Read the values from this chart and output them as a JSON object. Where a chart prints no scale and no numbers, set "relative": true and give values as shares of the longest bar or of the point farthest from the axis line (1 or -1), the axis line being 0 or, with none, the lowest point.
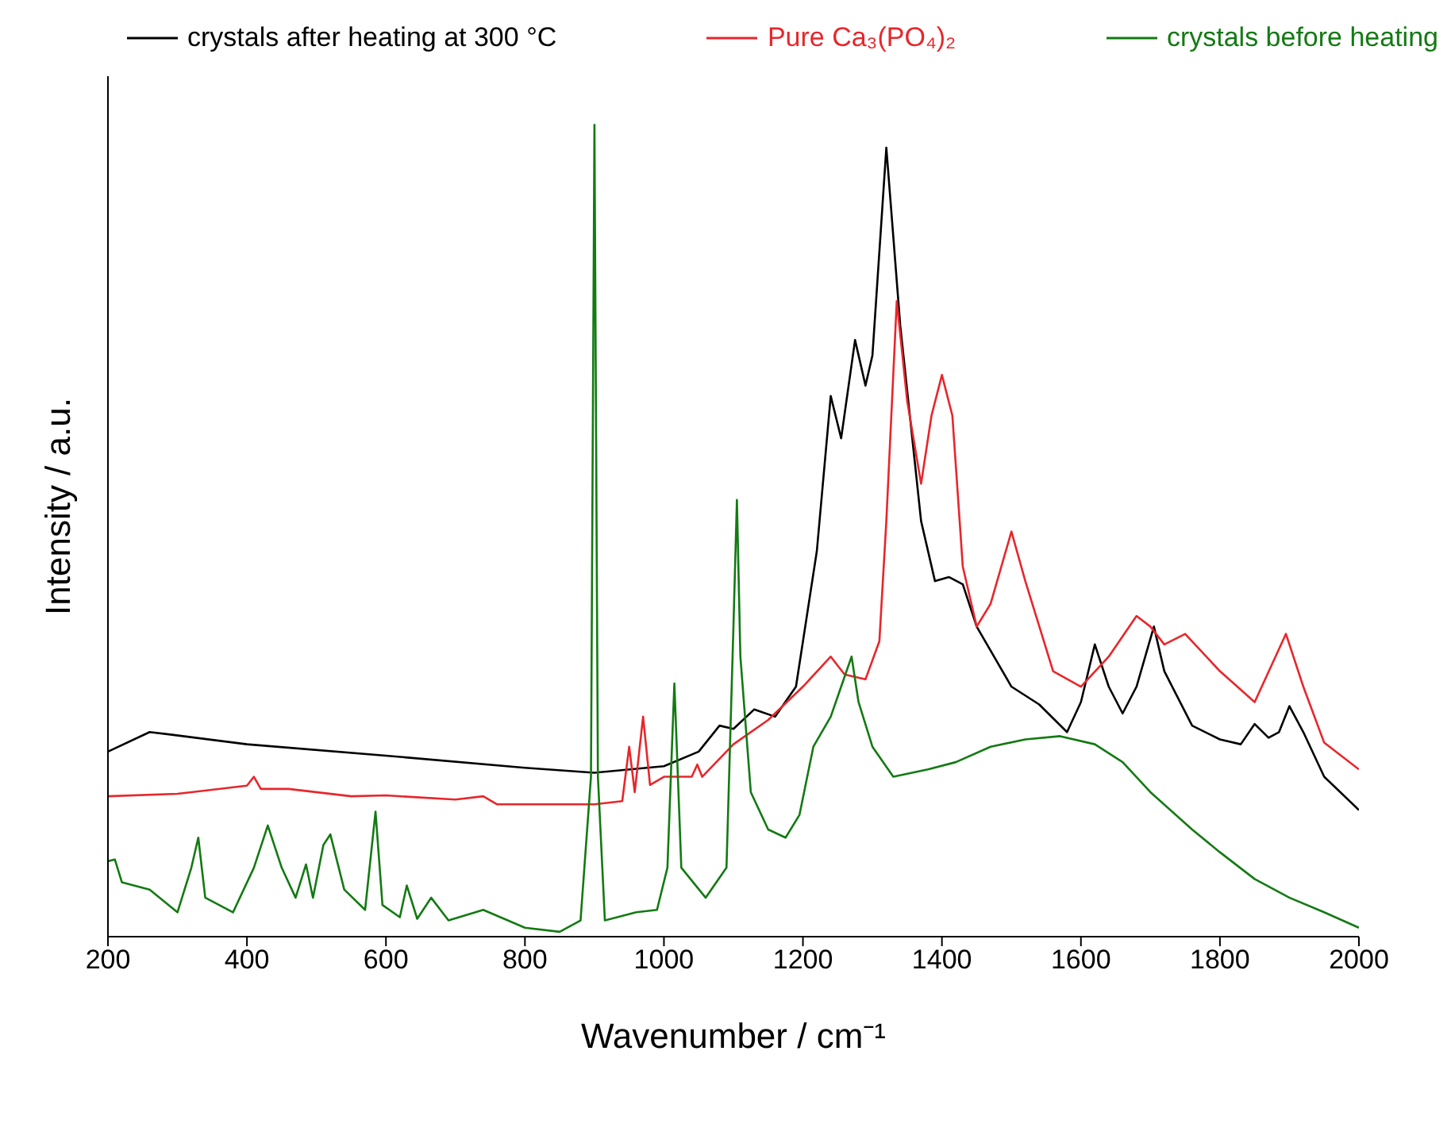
{
  "chart_data": {
    "type": "line",
    "relative": true,
    "xlabel": "Wavenumber / cm⁻¹",
    "ylabel": "Intensity / a.u.",
    "xlim": [
      200,
      2000
    ],
    "xticks": [
      200,
      400,
      600,
      800,
      1000,
      1200,
      1400,
      1600,
      1800,
      2000
    ],
    "legend": "top",
    "series": [
      {
        "name": "crystals after heating at 300 °C",
        "color": "#000000",
        "x": [
          200,
          260,
          290,
          400,
          600,
          800,
          900,
          1000,
          1050,
          1080,
          1100,
          1130,
          1160,
          1190,
          1220,
          1240,
          1255,
          1275,
          1290,
          1300,
          1320,
          1340,
          1370,
          1390,
          1410,
          1430,
          1450,
          1500,
          1540,
          1580,
          1600,
          1620,
          1640,
          1660,
          1680,
          1705,
          1720,
          1760,
          1800,
          1830,
          1850,
          1870,
          1885,
          1900,
          1920,
          1950,
          2000
        ],
        "values": [
          0.228,
          0.252,
          0.249,
          0.237,
          0.223,
          0.208,
          0.202,
          0.21,
          0.228,
          0.26,
          0.256,
          0.28,
          0.271,
          0.308,
          0.475,
          0.666,
          0.614,
          0.735,
          0.679,
          0.716,
          0.972,
          0.753,
          0.512,
          0.438,
          0.443,
          0.434,
          0.382,
          0.308,
          0.286,
          0.252,
          0.289,
          0.36,
          0.308,
          0.275,
          0.308,
          0.382,
          0.327,
          0.26,
          0.243,
          0.237,
          0.262,
          0.245,
          0.252,
          0.284,
          0.252,
          0.197,
          0.156
        ]
      },
      {
        "name": "Pure Ca₃(PO₄)₂",
        "color": "#e8262b",
        "x": [
          200,
          300,
          400,
          410,
          420,
          460,
          550,
          600,
          700,
          740,
          760,
          900,
          940,
          950,
          958,
          970,
          980,
          1000,
          1040,
          1048,
          1055,
          1100,
          1150,
          1200,
          1240,
          1260,
          1290,
          1310,
          1320,
          1335,
          1350,
          1370,
          1385,
          1400,
          1415,
          1430,
          1450,
          1470,
          1500,
          1520,
          1560,
          1600,
          1640,
          1680,
          1700,
          1720,
          1750,
          1800,
          1850,
          1895,
          1920,
          1950,
          2000
        ],
        "values": [
          0.173,
          0.176,
          0.186,
          0.197,
          0.182,
          0.182,
          0.173,
          0.174,
          0.169,
          0.173,
          0.163,
          0.163,
          0.167,
          0.234,
          0.178,
          0.271,
          0.187,
          0.197,
          0.197,
          0.212,
          0.197,
          0.237,
          0.267,
          0.308,
          0.345,
          0.323,
          0.317,
          0.364,
          0.512,
          0.783,
          0.66,
          0.558,
          0.642,
          0.692,
          0.642,
          0.456,
          0.382,
          0.41,
          0.499,
          0.438,
          0.327,
          0.308,
          0.345,
          0.395,
          0.382,
          0.36,
          0.373,
          0.327,
          0.289,
          0.373,
          0.308,
          0.239,
          0.206
        ]
      },
      {
        "name": "crystals before heating",
        "color": "#137a13",
        "x": [
          200,
          210,
          220,
          260,
          300,
          320,
          330,
          340,
          380,
          410,
          430,
          450,
          470,
          485,
          495,
          510,
          520,
          540,
          570,
          585,
          595,
          620,
          630,
          645,
          665,
          690,
          740,
          800,
          850,
          880,
          895,
          900,
          905,
          915,
          960,
          990,
          1005,
          1015,
          1025,
          1060,
          1090,
          1100,
          1105,
          1110,
          1125,
          1150,
          1175,
          1195,
          1215,
          1240,
          1255,
          1270,
          1280,
          1300,
          1330,
          1380,
          1420,
          1470,
          1520,
          1570,
          1620,
          1660,
          1700,
          1760,
          1800,
          1850,
          1900,
          1950,
          2000
        ],
        "values": [
          0.093,
          0.095,
          0.067,
          0.058,
          0.03,
          0.085,
          0.122,
          0.048,
          0.03,
          0.085,
          0.137,
          0.085,
          0.048,
          0.089,
          0.048,
          0.113,
          0.126,
          0.058,
          0.033,
          0.154,
          0.039,
          0.024,
          0.063,
          0.022,
          0.048,
          0.02,
          0.033,
          0.011,
          0.006,
          0.02,
          0.197,
          1.0,
          0.197,
          0.02,
          0.03,
          0.033,
          0.085,
          0.312,
          0.085,
          0.048,
          0.085,
          0.382,
          0.538,
          0.345,
          0.178,
          0.132,
          0.122,
          0.15,
          0.234,
          0.271,
          0.308,
          0.345,
          0.289,
          0.234,
          0.197,
          0.206,
          0.215,
          0.234,
          0.243,
          0.247,
          0.237,
          0.215,
          0.178,
          0.132,
          0.104,
          0.071,
          0.048,
          0.03,
          0.011
        ]
      }
    ]
  }
}
